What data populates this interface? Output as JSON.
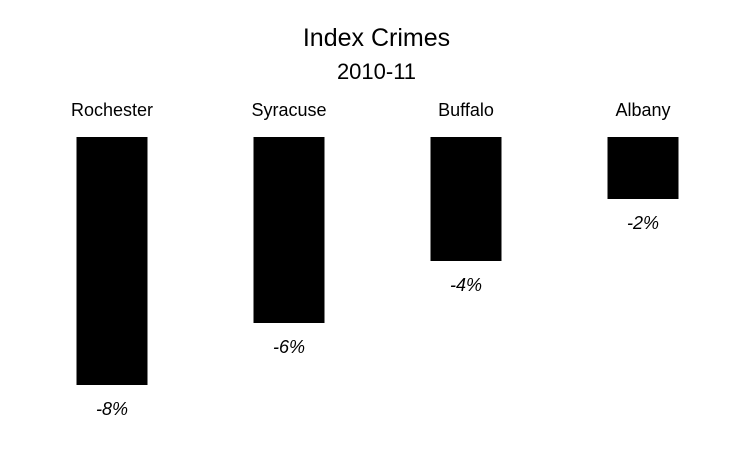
{
  "chart_data": {
    "type": "bar",
    "title": "Index Crimes",
    "subtitle": "2010-11",
    "categories": [
      "Rochester",
      "Syracuse",
      "Buffalo",
      "Albany"
    ],
    "values": [
      -8,
      -6,
      -4,
      -2
    ],
    "data_labels": [
      "-8%",
      "-6%",
      "-4%",
      "-2%"
    ],
    "ylim": [
      -8,
      0
    ],
    "grid": false,
    "legend": "none",
    "bar_color": "#000000",
    "xlabel": "",
    "ylabel": ""
  }
}
